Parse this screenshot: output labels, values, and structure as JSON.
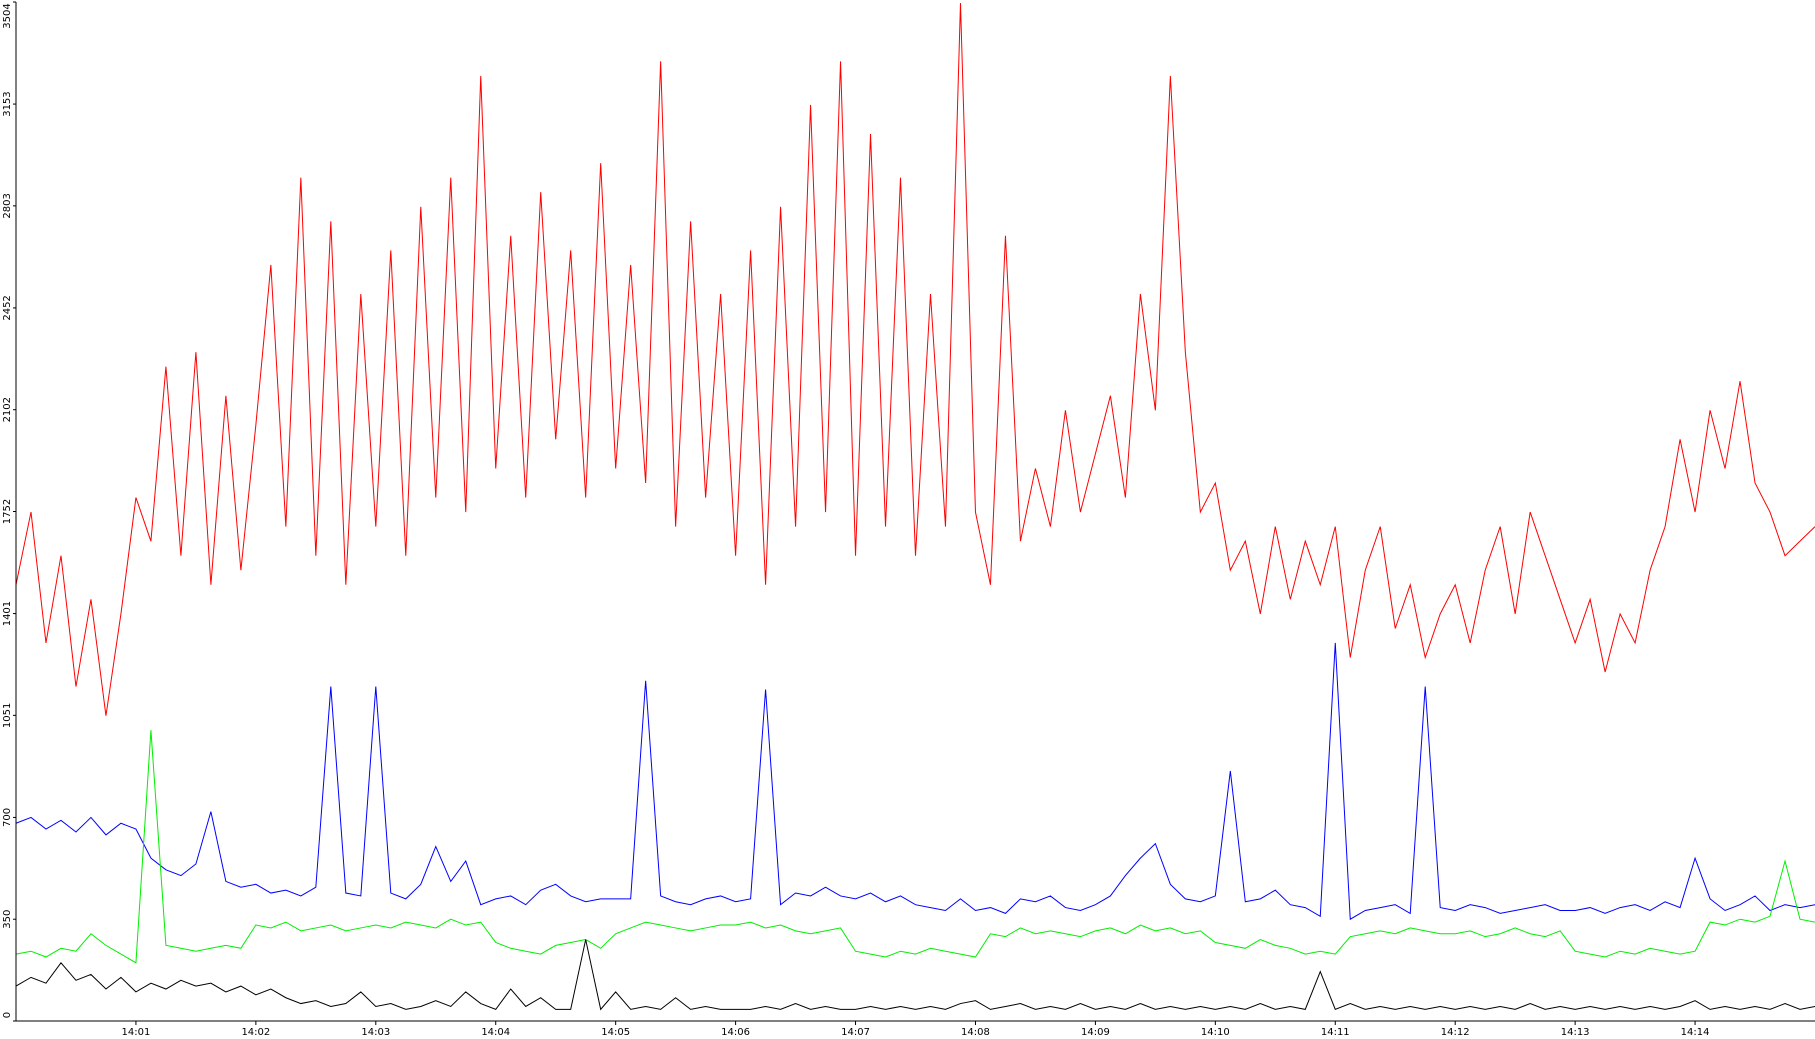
{
  "chart_data": {
    "type": "line",
    "x": [
      0,
      0.125,
      0.25,
      0.375,
      0.5,
      0.625,
      0.75,
      0.875,
      1,
      1.125,
      1.25,
      1.375,
      1.5,
      1.625,
      1.75,
      1.875,
      2,
      2.125,
      2.25,
      2.375,
      2.5,
      2.625,
      2.75,
      2.875,
      3,
      3.125,
      3.25,
      3.375,
      3.5,
      3.625,
      3.75,
      3.875,
      4,
      4.125,
      4.25,
      4.375,
      4.5,
      4.625,
      4.75,
      4.875,
      5,
      5.125,
      5.25,
      5.375,
      5.5,
      5.625,
      5.75,
      5.875,
      6,
      6.125,
      6.25,
      6.375,
      6.5,
      6.625,
      6.75,
      6.875,
      7,
      7.125,
      7.25,
      7.375,
      7.5,
      7.625,
      7.75,
      7.875,
      8,
      8.125,
      8.25,
      8.375,
      8.5,
      8.625,
      8.75,
      8.875,
      9,
      9.125,
      9.25,
      9.375,
      9.5,
      9.625,
      9.75,
      9.875,
      10,
      10.125,
      10.25,
      10.375,
      10.5,
      10.625,
      10.75,
      10.875,
      11,
      11.125,
      11.25,
      11.375,
      11.5,
      11.625,
      11.75,
      11.875,
      12,
      12.125,
      12.25,
      12.375,
      12.5,
      12.625,
      12.75,
      12.875,
      13,
      13.125,
      13.25,
      13.375,
      13.5,
      13.625,
      13.75,
      13.875,
      14,
      14.125,
      14.25,
      14.375,
      14.5,
      14.625,
      14.75,
      14.875,
      15
    ],
    "series": [
      {
        "color": "#ff0000",
        "values": [
          1500,
          1750,
          1300,
          1600,
          1150,
          1450,
          1050,
          1400,
          1800,
          1650,
          2250,
          1600,
          2300,
          1500,
          2150,
          1550,
          2050,
          2600,
          1700,
          2900,
          1600,
          2750,
          1500,
          2500,
          1700,
          2650,
          1600,
          2800,
          1800,
          2900,
          1750,
          3250,
          1900,
          2700,
          1800,
          2850,
          2000,
          2650,
          1800,
          2950,
          1900,
          2600,
          1850,
          3300,
          1700,
          2750,
          1800,
          2500,
          1600,
          2650,
          1500,
          2800,
          1700,
          3150,
          1750,
          3300,
          1600,
          3050,
          1700,
          2900,
          1600,
          2500,
          1700,
          3500,
          1750,
          1500,
          2700,
          1650,
          1900,
          1700,
          2100,
          1750,
          1950,
          2150,
          1800,
          2500,
          2100,
          3250,
          2300,
          1750,
          1850,
          1550,
          1650,
          1400,
          1700,
          1450,
          1650,
          1500,
          1700,
          1250,
          1550,
          1700,
          1350,
          1500,
          1250,
          1400,
          1500,
          1300,
          1550,
          1700,
          1400,
          1750,
          1600,
          1450,
          1300,
          1450,
          1200,
          1400,
          1300,
          1550,
          1700,
          2000,
          1750,
          2100,
          1900,
          2200,
          1850,
          1750,
          1600,
          1650,
          1700
        ]
      },
      {
        "color": "#0000ff",
        "values": [
          680,
          700,
          660,
          690,
          650,
          700,
          640,
          680,
          660,
          560,
          520,
          500,
          540,
          720,
          480,
          460,
          470,
          440,
          450,
          430,
          460,
          1150,
          440,
          430,
          1150,
          440,
          420,
          470,
          600,
          480,
          550,
          400,
          420,
          430,
          400,
          450,
          470,
          430,
          410,
          420,
          420,
          420,
          1170,
          430,
          410,
          400,
          420,
          430,
          410,
          420,
          1140,
          400,
          440,
          430,
          460,
          430,
          420,
          440,
          410,
          430,
          400,
          390,
          380,
          420,
          380,
          390,
          370,
          420,
          410,
          430,
          390,
          380,
          400,
          430,
          500,
          560,
          610,
          470,
          420,
          410,
          430,
          860,
          410,
          420,
          450,
          400,
          390,
          360,
          1300,
          350,
          380,
          390,
          400,
          370,
          1150,
          390,
          380,
          400,
          390,
          370,
          380,
          390,
          400,
          380,
          380,
          390,
          370,
          390,
          400,
          380,
          410,
          390,
          560,
          420,
          380,
          400,
          430,
          380,
          400,
          390,
          400
        ]
      },
      {
        "color": "#00ee00",
        "values": [
          230,
          240,
          220,
          250,
          240,
          300,
          260,
          230,
          200,
          1000,
          260,
          250,
          240,
          250,
          260,
          250,
          330,
          320,
          340,
          310,
          320,
          330,
          310,
          320,
          330,
          320,
          340,
          330,
          320,
          350,
          330,
          340,
          270,
          250,
          240,
          230,
          260,
          270,
          280,
          250,
          300,
          320,
          340,
          330,
          320,
          310,
          320,
          330,
          330,
          340,
          320,
          330,
          310,
          300,
          310,
          320,
          240,
          230,
          220,
          240,
          230,
          250,
          240,
          230,
          220,
          300,
          290,
          320,
          300,
          310,
          300,
          290,
          310,
          320,
          300,
          330,
          310,
          320,
          300,
          310,
          270,
          260,
          250,
          280,
          260,
          250,
          230,
          240,
          230,
          290,
          300,
          310,
          300,
          320,
          310,
          300,
          300,
          310,
          290,
          300,
          320,
          300,
          290,
          310,
          240,
          230,
          220,
          240,
          230,
          250,
          240,
          230,
          240,
          340,
          330,
          350,
          340,
          360,
          550,
          350,
          340
        ]
      },
      {
        "color": "#000000",
        "values": [
          120,
          150,
          130,
          200,
          140,
          160,
          110,
          150,
          100,
          130,
          110,
          140,
          120,
          130,
          100,
          120,
          90,
          110,
          80,
          60,
          70,
          50,
          60,
          100,
          50,
          60,
          40,
          50,
          70,
          50,
          100,
          60,
          40,
          110,
          50,
          80,
          40,
          40,
          280,
          40,
          100,
          40,
          50,
          40,
          80,
          40,
          50,
          40,
          40,
          40,
          50,
          40,
          60,
          40,
          50,
          40,
          40,
          50,
          40,
          50,
          40,
          50,
          40,
          60,
          70,
          40,
          50,
          60,
          40,
          50,
          40,
          60,
          40,
          50,
          40,
          60,
          40,
          50,
          40,
          50,
          40,
          50,
          40,
          60,
          40,
          50,
          40,
          170,
          40,
          60,
          40,
          50,
          40,
          50,
          40,
          50,
          40,
          50,
          40,
          50,
          40,
          60,
          40,
          50,
          40,
          50,
          40,
          50,
          40,
          50,
          40,
          50,
          70,
          40,
          50,
          40,
          50,
          40,
          60,
          40,
          50
        ]
      }
    ],
    "xlim": [
      0,
      15
    ],
    "xticks": [
      {
        "value": 1,
        "label": "14:01"
      },
      {
        "value": 2,
        "label": "14:02"
      },
      {
        "value": 3,
        "label": "14:03"
      },
      {
        "value": 4,
        "label": "14:04"
      },
      {
        "value": 5,
        "label": "14:05"
      },
      {
        "value": 6,
        "label": "14:06"
      },
      {
        "value": 7,
        "label": "14:07"
      },
      {
        "value": 8,
        "label": "14:08"
      },
      {
        "value": 9,
        "label": "14:09"
      },
      {
        "value": 10,
        "label": "14:10"
      },
      {
        "value": 11,
        "label": "14:11"
      },
      {
        "value": 12,
        "label": "14:12"
      },
      {
        "value": 13,
        "label": "14:13"
      },
      {
        "value": 14,
        "label": "14:14"
      }
    ],
    "ylim": [
      0,
      3504
    ],
    "yticks": [
      0,
      350,
      700,
      1051,
      1401,
      1752,
      2102,
      2452,
      2803,
      3153,
      3504
    ]
  }
}
